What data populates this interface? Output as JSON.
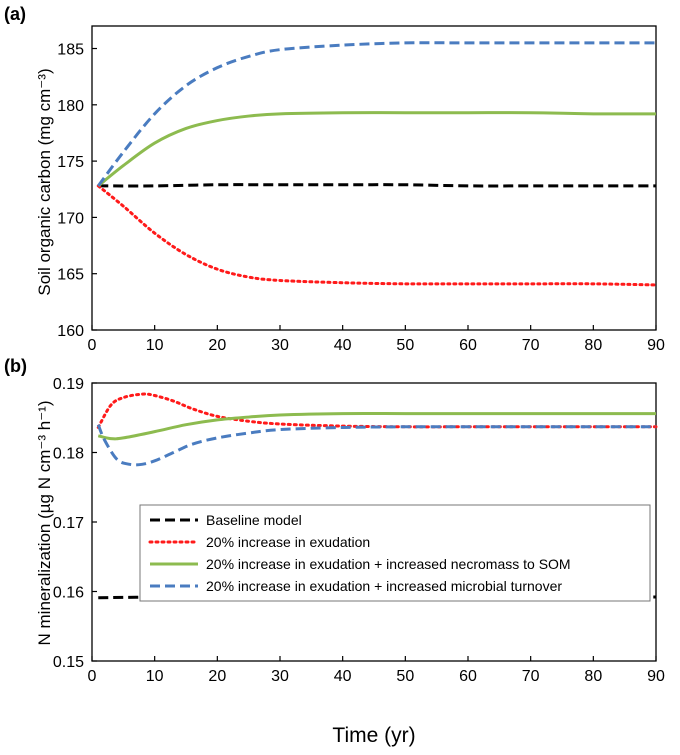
{
  "colors": {
    "baseline": "#000000",
    "exudation": "#ff1a1a",
    "necromass": "#8dbb4f",
    "turnover": "#4a7cc0"
  },
  "legend": [
    {
      "label": "Baseline model",
      "style": "dashed",
      "color": "#000000"
    },
    {
      "label": "20% increase in exudation",
      "style": "dotted",
      "color": "#ff1a1a"
    },
    {
      "label": "20% increase in exudation + increased necromass to SOM",
      "style": "solid",
      "color": "#8dbb4f"
    },
    {
      "label": "20% increase in exudation + increased microbial turnover",
      "style": "dashed",
      "color": "#4a7cc0"
    }
  ],
  "legend_placement": "lower-center of panel (b)",
  "chart_data": [
    {
      "type": "line",
      "panel_label": "(a)",
      "ylabel": "Soil organic carbon (mg cm⁻³)",
      "xlabel": "",
      "xlim": [
        0,
        90
      ],
      "ylim": [
        160,
        187
      ],
      "xticks": [
        0,
        10,
        20,
        30,
        40,
        50,
        60,
        70,
        80,
        90
      ],
      "yticks": [
        160,
        165,
        170,
        175,
        180,
        185
      ],
      "grid": false,
      "series": [
        {
          "name": "Baseline model",
          "style": "dashed",
          "color": "#000000",
          "x": [
            1,
            10,
            20,
            30,
            40,
            50,
            60,
            70,
            80,
            90
          ],
          "y": [
            172.8,
            172.8,
            172.9,
            172.9,
            172.9,
            172.9,
            172.8,
            172.8,
            172.8,
            172.8
          ]
        },
        {
          "name": "20% increase in exudation",
          "style": "dotted",
          "color": "#ff1a1a",
          "x": [
            1,
            5,
            10,
            15,
            20,
            25,
            30,
            40,
            50,
            60,
            70,
            80,
            90
          ],
          "y": [
            172.8,
            171.0,
            168.6,
            166.7,
            165.4,
            164.7,
            164.4,
            164.2,
            164.1,
            164.1,
            164.1,
            164.1,
            164.0
          ]
        },
        {
          "name": "20% increase in exudation + increased necromass to SOM",
          "style": "solid",
          "color": "#8dbb4f",
          "x": [
            1,
            5,
            10,
            15,
            20,
            25,
            30,
            40,
            50,
            60,
            70,
            80,
            90
          ],
          "y": [
            172.8,
            174.6,
            176.6,
            177.9,
            178.6,
            179.0,
            179.2,
            179.3,
            179.3,
            179.3,
            179.3,
            179.2,
            179.2
          ]
        },
        {
          "name": "20% increase in exudation + increased microbial turnover",
          "style": "dashed",
          "color": "#4a7cc0",
          "x": [
            1,
            5,
            10,
            15,
            20,
            25,
            30,
            40,
            50,
            60,
            70,
            80,
            90
          ],
          "y": [
            172.8,
            175.8,
            179.2,
            181.7,
            183.3,
            184.3,
            184.9,
            185.3,
            185.5,
            185.5,
            185.5,
            185.5,
            185.5
          ]
        }
      ]
    },
    {
      "type": "line",
      "panel_label": "(b)",
      "ylabel": "N mineralization (µg N cm⁻³ h⁻¹)",
      "xlabel": "Time (yr)",
      "xlim": [
        0,
        90
      ],
      "ylim": [
        0.15,
        0.19
      ],
      "xticks": [
        0,
        10,
        20,
        30,
        40,
        50,
        60,
        70,
        80,
        90
      ],
      "yticks": [
        0.15,
        0.16,
        0.17,
        0.18,
        0.19
      ],
      "grid": false,
      "series": [
        {
          "name": "Baseline model",
          "style": "dashed",
          "color": "#000000",
          "x": [
            1,
            10,
            20,
            30,
            40,
            50,
            60,
            70,
            80,
            90
          ],
          "y": [
            0.1591,
            0.1592,
            0.1592,
            0.1592,
            0.1592,
            0.1592,
            0.1592,
            0.1592,
            0.1592,
            0.1592
          ]
        },
        {
          "name": "20% increase in exudation",
          "style": "dotted",
          "color": "#ff1a1a",
          "x": [
            1,
            3,
            5,
            8,
            10,
            13,
            16,
            20,
            25,
            30,
            40,
            50,
            60,
            70,
            80,
            90
          ],
          "y": [
            0.1836,
            0.1868,
            0.1879,
            0.1884,
            0.1882,
            0.1874,
            0.1863,
            0.1852,
            0.1845,
            0.1841,
            0.1838,
            0.1837,
            0.1837,
            0.1837,
            0.1837,
            0.1837
          ]
        },
        {
          "name": "20% increase in exudation + increased necromass to SOM",
          "style": "solid",
          "color": "#8dbb4f",
          "x": [
            1,
            3,
            5,
            10,
            15,
            20,
            25,
            30,
            40,
            50,
            60,
            70,
            80,
            90
          ],
          "y": [
            0.1824,
            0.182,
            0.1821,
            0.183,
            0.184,
            0.1847,
            0.1851,
            0.1854,
            0.1856,
            0.1856,
            0.1856,
            0.1856,
            0.1856,
            0.1856
          ]
        },
        {
          "name": "20% increase in exudation + increased microbial turnover",
          "style": "dashed",
          "color": "#4a7cc0",
          "x": [
            1,
            2,
            4,
            6,
            8,
            10,
            13,
            16,
            20,
            25,
            30,
            40,
            50,
            60,
            70,
            80,
            90
          ],
          "y": [
            0.184,
            0.1818,
            0.179,
            0.1783,
            0.1783,
            0.1788,
            0.18,
            0.1812,
            0.1821,
            0.1828,
            0.1833,
            0.1836,
            0.1837,
            0.1837,
            0.1837,
            0.1837,
            0.1837
          ]
        }
      ]
    }
  ]
}
